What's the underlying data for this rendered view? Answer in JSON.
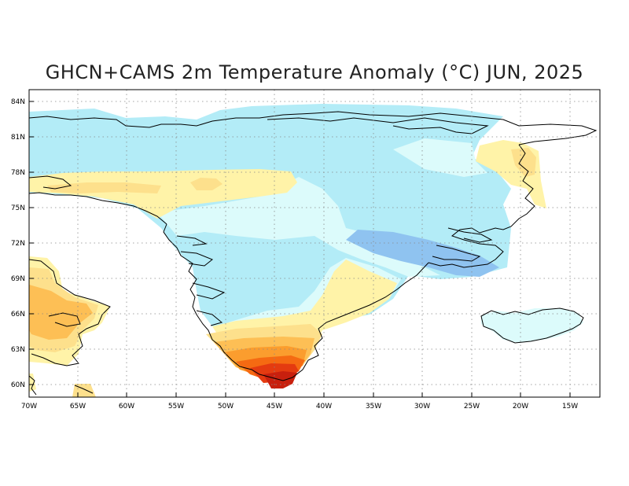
{
  "title": "GHCN+CAMS 2m Temperature Anomaly (°C) JUN, 2025",
  "map": {
    "region": "Greenland / Iceland / Baffin Island",
    "projection": "lat-lon",
    "lon_range": [
      -70,
      -12
    ],
    "lat_range": [
      59,
      85
    ],
    "grid": true,
    "lat_tick_labels": [
      "84N",
      "81N",
      "78N",
      "75N",
      "72N",
      "69N",
      "66N",
      "63N",
      "60N"
    ],
    "lon_tick_labels": [
      "70W",
      "65W",
      "60W",
      "55W",
      "50W",
      "45W",
      "40W",
      "35W",
      "30W",
      "25W",
      "20W",
      "15W"
    ],
    "colors": {
      "anomaly_neg_strong": "#8fc3f0",
      "anomaly_neg": "#b3ecf7",
      "anomaly_neg_weak": "#dcfbfb",
      "anomaly_pos_weak": "#fff3a8",
      "anomaly_pos_1": "#fde08c",
      "anomaly_pos_2": "#fdbf55",
      "anomaly_pos_3": "#fb9d2e",
      "anomaly_pos_4": "#f56a12",
      "anomaly_pos_5": "#e43b10",
      "anomaly_pos_6": "#c8200e",
      "coastline": "#000000",
      "grid": "#888888"
    }
  }
}
